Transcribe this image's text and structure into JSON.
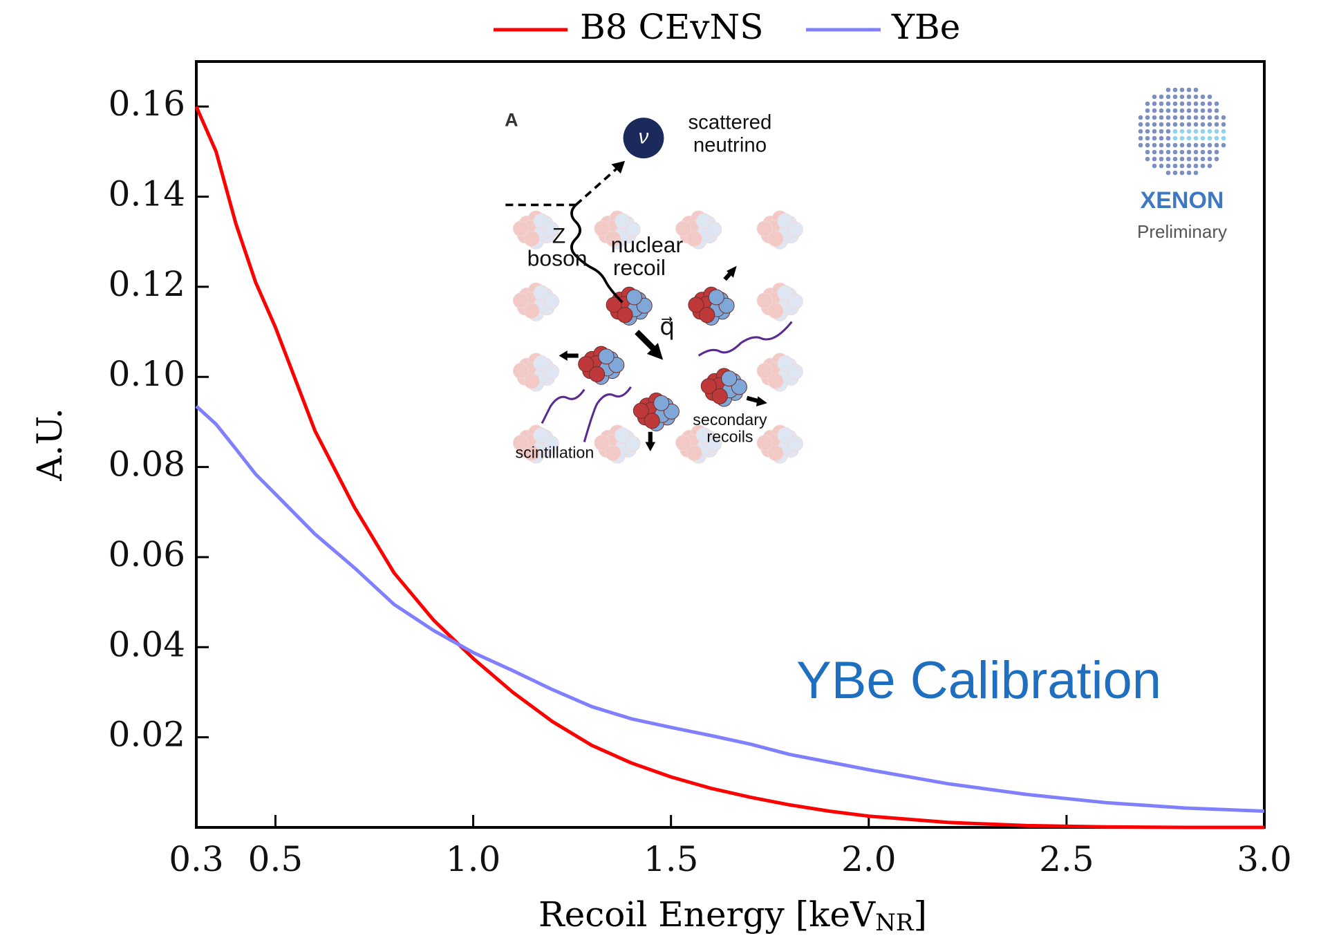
{
  "chart_data": {
    "type": "line",
    "xlabel": "Recoil Energy [keV",
    "xlabel_sub": "NR",
    "xlabel_end": "]",
    "ylabel": "A.U.",
    "x": [
      0.3,
      0.35,
      0.4,
      0.45,
      0.5,
      0.6,
      0.7,
      0.8,
      0.9,
      1.0,
      1.1,
      1.2,
      1.3,
      1.4,
      1.5,
      1.6,
      1.7,
      1.8,
      1.9,
      2.0,
      2.2,
      2.4,
      2.6,
      2.8,
      3.0
    ],
    "series": [
      {
        "name": "B8 CEvNS",
        "color": "#ff0000",
        "values": [
          0.16,
          0.15,
          0.134,
          0.121,
          0.111,
          0.088,
          0.071,
          0.0565,
          0.046,
          0.0375,
          0.03,
          0.0235,
          0.0182,
          0.0143,
          0.0112,
          0.0087,
          0.0067,
          0.005,
          0.0036,
          0.0025,
          0.0011,
          0.0004,
          0.0001,
          0.0,
          0.0
        ]
      },
      {
        "name": "YBe",
        "color": "#8080ff",
        "values": [
          0.0935,
          0.0895,
          0.084,
          0.0784,
          0.074,
          0.0651,
          0.0576,
          0.0495,
          0.0437,
          0.0388,
          0.0348,
          0.0306,
          0.0268,
          0.0241,
          0.0222,
          0.0204,
          0.0185,
          0.0162,
          0.0145,
          0.0128,
          0.0097,
          0.0073,
          0.0055,
          0.0043,
          0.0036
        ]
      }
    ],
    "xlim": [
      0.3,
      3.0
    ],
    "xticks": [
      0.3,
      0.5,
      {
        "value": 1.0,
        "label": "1.0"
      },
      1.5,
      {
        "value": 2.0,
        "label": "2.0"
      },
      2.5,
      {
        "value": 3.0,
        "label": "3.0"
      }
    ],
    "ylim": [
      0,
      0.17
    ],
    "yticks": [
      0.02,
      0.04,
      0.06,
      0.08,
      {
        "value": 0.1,
        "label": "0.10"
      },
      0.12,
      0.14,
      0.16
    ],
    "annotation": "YBe Calibration",
    "logo": {
      "name": "XENON",
      "subtitle": "Preliminary"
    },
    "inset": {
      "panel": "A",
      "neutrino_symbol": "ν",
      "scattered": "scattered",
      "neutrino": "neutrino",
      "z": "Z",
      "boson": "boson",
      "nuclear": "nuclear",
      "recoil": "recoil",
      "q": "q⃗",
      "secondary": "secondary",
      "recoils": "recoils",
      "scintillation": "scintillation"
    }
  }
}
